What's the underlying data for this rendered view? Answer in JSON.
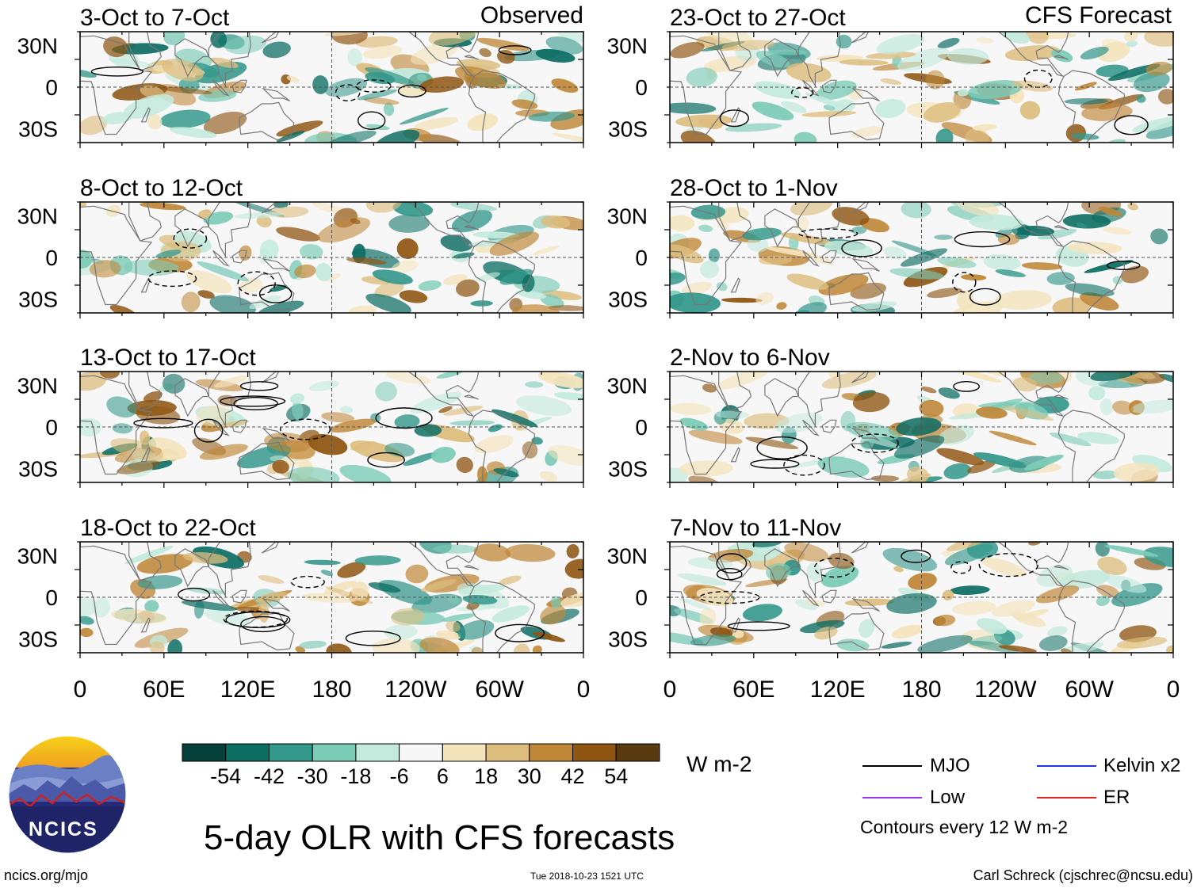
{
  "chart_data": {
    "type": "heatmap",
    "title": "5-day OLR with CFS forecasts",
    "units": "W m-2",
    "columns": [
      {
        "label": "Observed",
        "panels": [
          "3-Oct to 7-Oct",
          "8-Oct to 12-Oct",
          "13-Oct to 17-Oct",
          "18-Oct to 22-Oct"
        ]
      },
      {
        "label": "CFS Forecast",
        "panels": [
          "23-Oct to 27-Oct",
          "28-Oct to 1-Nov",
          "2-Nov to 6-Nov",
          "7-Nov to 11-Nov"
        ]
      }
    ],
    "x_ticks": [
      "0",
      "60E",
      "120E",
      "180",
      "120W",
      "60W",
      "0"
    ],
    "y_ticks": [
      "30N",
      "0",
      "30S"
    ],
    "xlim_deg": [
      0,
      360
    ],
    "ylim_deg": [
      -40,
      40
    ],
    "colorbar": {
      "labels": [
        "-54",
        "-42",
        "-30",
        "-18",
        "-6",
        "6",
        "18",
        "30",
        "42",
        "54"
      ],
      "colors": [
        "#06403a",
        "#0d6e64",
        "#34978b",
        "#7ccbb7",
        "#c3eadd",
        "#f7f7f7",
        "#f4e4bc",
        "#ddbd7e",
        "#bf8738",
        "#8f5613",
        "#5a3a10"
      ]
    },
    "legend": [
      {
        "label": "MJO",
        "color": "#000000"
      },
      {
        "label": "Kelvin x2",
        "color": "#2233dd"
      },
      {
        "label": "Low",
        "color": "#9933ee"
      },
      {
        "label": "ER",
        "color": "#dd2222"
      }
    ],
    "contour_note": "Contours every 12 W m-2"
  },
  "footer": {
    "url": "ncics.org/mjo",
    "timestamp": "Tue 2018-10-23 1521 UTC",
    "author": "Carl Schreck (cjschrec@ncsu.edu)"
  },
  "logo": {
    "text": "NCICS"
  },
  "colors": {
    "grid": "#888888",
    "border": "#000000"
  }
}
